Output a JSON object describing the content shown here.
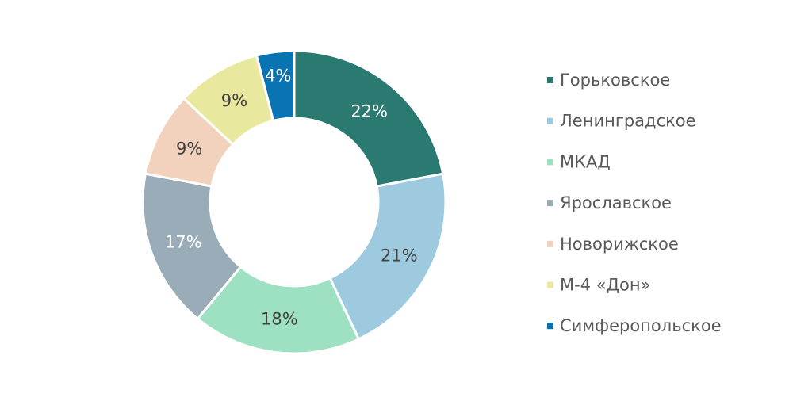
{
  "chart_data": {
    "type": "pie",
    "variant": "donut",
    "categories": [
      "Горьковское",
      "Ленинградское",
      "МКАД",
      "Ярославское",
      "Новорижское",
      "М-4 «Дон»",
      "Симферопольское"
    ],
    "values": [
      22,
      21,
      18,
      17,
      9,
      9,
      4
    ],
    "labels": [
      "22%",
      "21%",
      "18%",
      "17%",
      "9%",
      "9%",
      "4%"
    ],
    "colors": [
      "#2a7a72",
      "#9ecae0",
      "#9de0c2",
      "#9aacb8",
      "#f2d2bc",
      "#e8e89e",
      "#0a74b2"
    ],
    "label_colors": [
      "#ffffff",
      "#404040",
      "#404040",
      "#ffffff",
      "#404040",
      "#404040",
      "#ffffff"
    ],
    "legend_position": "right",
    "title": ""
  }
}
